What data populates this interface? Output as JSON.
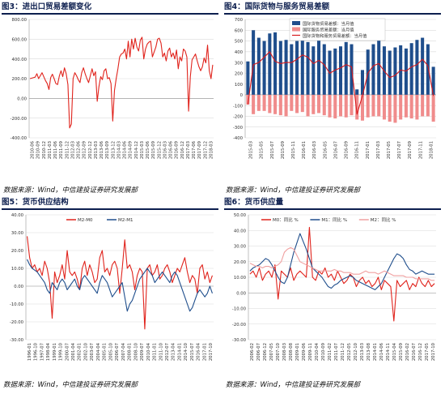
{
  "source_note": "数据来源：Wind，中信建投证券研究发展部",
  "charts": [
    {
      "title": "图3：进出口贸易差额变化",
      "chart_data": {
        "type": "line",
        "title": "图3：进出口贸易差额变化",
        "xlabel": "",
        "ylabel": "",
        "ylim": [
          -400,
          800
        ],
        "yticks": [
          "800.00",
          "600.00",
          "400.00",
          "200.00",
          "0.00",
          "-200.00",
          "-400.00"
        ],
        "grid": true,
        "x_tick_labels": [
          "2010-06",
          "2010-09",
          "2010-12",
          "2011-03",
          "2011-06",
          "2011-09",
          "2011-12",
          "2012-03",
          "2012-06",
          "2012-09",
          "2012-12",
          "2013-03",
          "2013-06",
          "2013-09",
          "2013-12",
          "2014-03",
          "2014-06",
          "2014-09",
          "2014-12",
          "2015-03",
          "2015-06",
          "2015-09",
          "2015-12",
          "2016-03",
          "2016-06",
          "2016-09",
          "2016-12",
          "2017-03",
          "2017-06",
          "2017-09",
          "2017-12",
          "2018-03"
        ],
        "series": [
          {
            "color": "#e0231c",
            "values": [
              200,
              205,
              210,
              215,
              250,
              200,
              230,
              260,
              220,
              180,
              150,
              90,
              210,
              245,
              200,
              150,
              140,
              225,
              280,
              220,
              310,
              250,
              140,
              -300,
              -260,
              200,
              260,
              230,
              190,
              160,
              260,
              310,
              250,
              200,
              160,
              230,
              300,
              230,
              270,
              -30,
              120,
              220,
              190,
              280,
              300,
              200,
              210,
              150,
              -230,
              80,
              200,
              300,
              420,
              450,
              460,
              500,
              400,
              580,
              420,
              600,
              500,
              610,
              520,
              480,
              590,
              620,
              400,
              500,
              550,
              570,
              580,
              420,
              470,
              520,
              600,
              610,
              560,
              420,
              460,
              380,
              480,
              510,
              420,
              460,
              400,
              490,
              300,
              420,
              380,
              500,
              480,
              420,
              -130,
              220,
              390,
              420,
              450,
              380,
              320,
              280,
              320,
              410,
              360,
              540,
              280,
              200,
              340
            ]
          }
        ]
      }
    },
    {
      "title": "图4：国际货物与服务贸易差额",
      "chart_data": {
        "type": "bar",
        "title": "图4：国际货物与服务贸易差额",
        "xlabel": "",
        "ylabel": "",
        "ylim": [
          -400,
          700
        ],
        "yticks": [
          "700",
          "600",
          "500",
          "400",
          "300",
          "200",
          "100",
          "0",
          "-100",
          "-200",
          "-300",
          "-400"
        ],
        "grid": true,
        "x_tick_labels": [
          "2015-03",
          "2015-05",
          "2015-07",
          "2015-09",
          "2015-11",
          "2016-01",
          "2016-03",
          "2016-05",
          "2016-07",
          "2016-09",
          "2016-11",
          "2017-01",
          "2017-03",
          "2017-05",
          "2017-07",
          "2017-09",
          "2017-11",
          "2018-01"
        ],
        "legend": "top-right",
        "series": [
          {
            "name": "国际货物贸易差额：当月值",
            "type": "bar",
            "color": "#1f4e8c",
            "values": [
              310,
              600,
              530,
              500,
              570,
              580,
              500,
              510,
              470,
              500,
              530,
              490,
              450,
              510,
              470,
              410,
              430,
              450,
              490,
              470,
              50,
              230,
              420,
              470,
              520,
              450,
              410,
              440,
              460,
              430,
              480,
              510,
              530,
              470,
              260
            ]
          },
          {
            "name": "国际服务贸易差额：当月值",
            "type": "bar",
            "color": "#f08c8c",
            "values": [
              -90,
              -180,
              -150,
              -150,
              -170,
              -180,
              -190,
              -200,
              -150,
              -170,
              -160,
              -200,
              -180,
              -170,
              -190,
              -210,
              -220,
              -200,
              -210,
              -190,
              -230,
              -240,
              -210,
              -200,
              -200,
              -230,
              -250,
              -260,
              -230,
              -210,
              -220,
              -230,
              -200,
              -200,
              -250
            ]
          },
          {
            "name": "国际货物和服务贸易差额：当月值",
            "type": "line",
            "color": "#d7191c",
            "values": [
              -90,
              280,
              300,
              350,
              400,
              310,
              290,
              300,
              300,
              330,
              370,
              350,
              290,
              320,
              280,
              200,
              230,
              250,
              280,
              260,
              -180,
              -10,
              200,
              270,
              290,
              220,
              160,
              180,
              230,
              220,
              260,
              280,
              330,
              270,
              -10
            ]
          }
        ]
      }
    },
    {
      "title": "图5：货币供应结构",
      "chart_data": {
        "type": "line",
        "title": "图5：货币供应结构",
        "xlabel": "",
        "ylabel": "",
        "ylim": [
          -30,
          40
        ],
        "yticks": [
          "40.00",
          "30.00",
          "20.00",
          "10.00",
          "0.00",
          "-10.00",
          "-20.00",
          "-30.00"
        ],
        "grid": true,
        "legend": "top-center",
        "x_tick_labels": [
          "1996-01",
          "1996-10",
          "1997-07",
          "1998-04",
          "1999-01",
          "1999-10",
          "2000-07",
          "2001-04",
          "2002-01",
          "2002-10",
          "2003-07",
          "2004-04",
          "2005-01",
          "2005-10",
          "2006-07",
          "2007-04",
          "2008-01",
          "2008-10",
          "2009-07",
          "2010-04",
          "2011-01",
          "2011-10",
          "2012-07",
          "2013-04",
          "2014-01",
          "2014-10",
          "2015-07",
          "2016-04",
          "2017-01",
          "2017-10"
        ],
        "series": [
          {
            "name": "M2-M0",
            "color": "#e0231c",
            "values": [
              28,
              16,
              10,
              12,
              8,
              10,
              6,
              14,
              10,
              2,
              -18,
              8,
              2,
              6,
              12,
              4,
              20,
              8,
              6,
              8,
              4,
              -2,
              10,
              14,
              6,
              12,
              8,
              2,
              4,
              16,
              20,
              8,
              10,
              6,
              12,
              14,
              10,
              -4,
              10,
              26,
              10,
              12,
              8,
              -2,
              6,
              10,
              8,
              -24,
              10,
              12,
              6,
              8,
              12,
              4,
              6,
              10,
              12,
              8,
              2,
              6,
              10,
              8,
              12,
              16,
              8,
              2,
              6,
              4,
              -4,
              10,
              12,
              4,
              8,
              2,
              6
            ]
          },
          {
            "name": "M2-M1",
            "color": "#1f4e8c",
            "values": [
              15,
              12,
              10,
              9,
              8,
              6,
              4,
              2,
              -2,
              -4,
              2,
              0,
              -2,
              2,
              4,
              2,
              -2,
              0,
              2,
              4,
              0,
              -2,
              4,
              6,
              4,
              2,
              0,
              -2,
              -4,
              2,
              6,
              4,
              2,
              -2,
              -6,
              -4,
              -2,
              0,
              2,
              -6,
              -14,
              -10,
              -8,
              -4,
              0,
              4,
              6,
              8,
              10,
              8,
              6,
              2,
              4,
              6,
              8,
              6,
              4,
              2,
              6,
              8,
              6,
              2,
              -2,
              -6,
              -10,
              -14,
              -12,
              -8,
              -4,
              -2,
              -4,
              -6,
              -4,
              0,
              -4
            ]
          }
        ]
      }
    },
    {
      "title": "图6：货币供应量",
      "chart_data": {
        "type": "line",
        "title": "图6：货币供应量",
        "xlabel": "",
        "ylabel": "",
        "ylim": [
          -30,
          50
        ],
        "yticks": [
          "50.00",
          "40.00",
          "30.00",
          "20.00",
          "10.00",
          "0.00",
          "-10.00",
          "-20.00",
          "-30.00"
        ],
        "grid": true,
        "legend": "top",
        "x_tick_labels": [
          "2006-02",
          "2006-07",
          "2006-12",
          "2007-05",
          "2007-10",
          "2008-03",
          "2008-08",
          "2009-01",
          "2009-06",
          "2009-11",
          "2010-04",
          "2010-09",
          "2011-02",
          "2011-07",
          "2011-12",
          "2012-05",
          "2012-10",
          "2013-03",
          "2013-08",
          "2014-01",
          "2014-06",
          "2014-11",
          "2015-04",
          "2015-09",
          "2016-02",
          "2016-07",
          "2016-12",
          "2017-05",
          "2017-10"
        ],
        "series": [
          {
            "name": "M0：同比 %",
            "color": "#e0231c",
            "values": [
              12,
              14,
              10,
              16,
              8,
              12,
              14,
              10,
              18,
              -4,
              14,
              12,
              10,
              16,
              8,
              12,
              14,
              12,
              10,
              42,
              10,
              8,
              14,
              12,
              16,
              10,
              12,
              8,
              14,
              10,
              6,
              8,
              12,
              10,
              4,
              8,
              10,
              6,
              8,
              4,
              6,
              10,
              2,
              8,
              6,
              4,
              -18,
              8,
              4,
              6,
              8,
              2,
              6,
              4,
              10,
              6,
              4,
              8,
              4,
              6
            ]
          },
          {
            "name": "M1：同比 %",
            "color": "#1f4e8c",
            "values": [
              14,
              16,
              17,
              18,
              20,
              22,
              21,
              18,
              14,
              10,
              7,
              6,
              10,
              18,
              26,
              32,
              38,
              33,
              28,
              22,
              16,
              14,
              12,
              10,
              7,
              4,
              3,
              5,
              6,
              8,
              9,
              10,
              11,
              10,
              8,
              7,
              6,
              5,
              4,
              3,
              2,
              4,
              6,
              10,
              14,
              18,
              22,
              25,
              24,
              22,
              18,
              15,
              14,
              12,
              13,
              14,
              13,
              12,
              12,
              12
            ]
          },
          {
            "name": "M2：同比 %",
            "color": "#f0a0a0",
            "values": [
              19,
              18,
              17,
              17,
              16,
              17,
              17,
              16,
              17,
              18,
              20,
              26,
              28,
              29,
              28,
              24,
              20,
              19,
              18,
              17,
              16,
              15,
              14,
              14,
              14,
              14,
              14,
              15,
              14,
              14,
              13,
              13,
              13,
              12,
              12,
              12,
              13,
              14,
              13,
              13,
              13,
              12,
              13,
              14,
              13,
              12,
              11,
              11,
              11,
              11,
              10,
              10,
              10,
              9,
              9,
              9,
              9,
              9,
              8,
              8
            ]
          }
        ]
      }
    }
  ]
}
